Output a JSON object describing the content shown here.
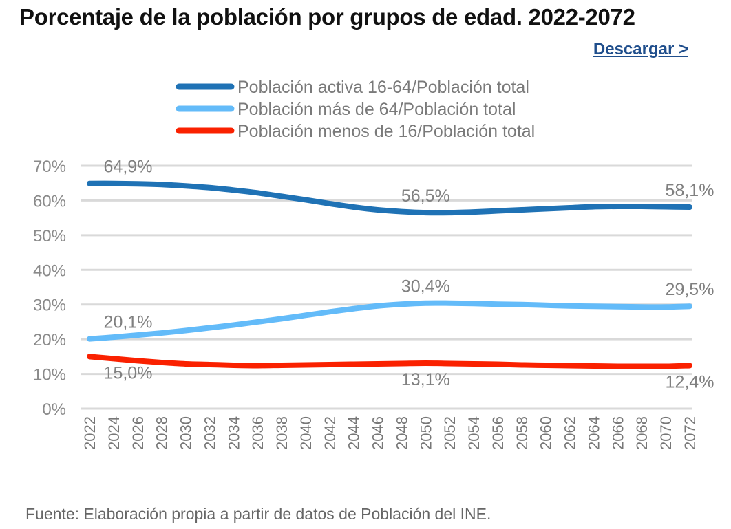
{
  "header": {
    "title": "Porcentaje de la población por grupos de edad. 2022-2072",
    "download_label": "Descargar >"
  },
  "footer": {
    "source": "Fuente: Elaboración propia a partir de datos de Población del INE."
  },
  "chart_data": {
    "type": "line",
    "title": "Porcentaje de la población por grupos de edad. 2022-2072",
    "xlabel": "",
    "ylabel": "",
    "ylim": [
      0,
      70
    ],
    "yticks": [
      "0%",
      "10%",
      "20%",
      "30%",
      "40%",
      "50%",
      "60%",
      "70%"
    ],
    "grid": true,
    "legend": "top",
    "x": [
      "2022",
      "2024",
      "2026",
      "2028",
      "2030",
      "2032",
      "2034",
      "2036",
      "2038",
      "2040",
      "2042",
      "2044",
      "2046",
      "2048",
      "2050",
      "2052",
      "2054",
      "2056",
      "2058",
      "2060",
      "2062",
      "2064",
      "2066",
      "2068",
      "2070",
      "2072"
    ],
    "series": [
      {
        "name": "Población activa 16-64/Población total",
        "color": "#1f72b5",
        "values": [
          64.9,
          64.9,
          64.8,
          64.6,
          64.2,
          63.7,
          63.0,
          62.2,
          61.2,
          60.2,
          59.1,
          58.1,
          57.3,
          56.8,
          56.5,
          56.5,
          56.7,
          57.0,
          57.3,
          57.6,
          57.9,
          58.2,
          58.3,
          58.3,
          58.2,
          58.1
        ],
        "labels": [
          {
            "x": "2022",
            "text": "64,9%",
            "pos": "above"
          },
          {
            "x": "2050",
            "text": "56,5%",
            "pos": "above"
          },
          {
            "x": "2072",
            "text": "58,1%",
            "pos": "above"
          }
        ]
      },
      {
        "name": "Población más de 64/Población total",
        "color": "#63bbf9",
        "values": [
          20.1,
          20.6,
          21.2,
          21.8,
          22.5,
          23.3,
          24.1,
          25.0,
          25.9,
          26.9,
          27.9,
          28.8,
          29.6,
          30.1,
          30.4,
          30.4,
          30.3,
          30.1,
          30.0,
          29.8,
          29.6,
          29.5,
          29.4,
          29.3,
          29.3,
          29.5
        ],
        "labels": [
          {
            "x": "2022",
            "text": "20,1%",
            "pos": "above"
          },
          {
            "x": "2050",
            "text": "30,4%",
            "pos": "above"
          },
          {
            "x": "2072",
            "text": "29,5%",
            "pos": "above"
          }
        ]
      },
      {
        "name": "Población menos de 16/Población total",
        "color": "#fa2100",
        "values": [
          15.0,
          14.4,
          13.8,
          13.3,
          12.9,
          12.7,
          12.5,
          12.4,
          12.5,
          12.6,
          12.7,
          12.8,
          12.9,
          13.0,
          13.1,
          13.0,
          12.9,
          12.8,
          12.6,
          12.5,
          12.4,
          12.3,
          12.2,
          12.2,
          12.2,
          12.4
        ],
        "labels": [
          {
            "x": "2022",
            "text": "15,0%",
            "pos": "below"
          },
          {
            "x": "2050",
            "text": "13,1%",
            "pos": "below"
          },
          {
            "x": "2072",
            "text": "12,4%",
            "pos": "below"
          }
        ]
      }
    ]
  }
}
